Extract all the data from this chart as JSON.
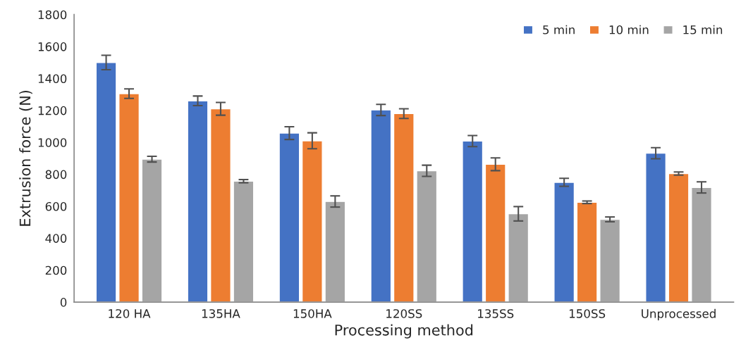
{
  "chart_data": {
    "type": "bar",
    "xlabel": "Processing method",
    "ylabel": "Extrusion force (N)",
    "categories": [
      "120 HA",
      "135HA",
      "150HA",
      "120SS",
      "135SS",
      "150SS",
      "Unprocessed"
    ],
    "series": [
      {
        "name": "5 min",
        "color": "#4472c4",
        "values": [
          1500,
          1260,
          1058,
          1203,
          1008,
          750,
          932
        ],
        "errors": [
          45,
          30,
          40,
          35,
          35,
          25,
          35
        ]
      },
      {
        "name": "10 min",
        "color": "#ed7d31",
        "values": [
          1305,
          1210,
          1010,
          1180,
          863,
          625,
          805
        ],
        "errors": [
          30,
          40,
          50,
          30,
          40,
          8,
          10
        ]
      },
      {
        "name": "15 min",
        "color": "#a5a5a5",
        "values": [
          895,
          757,
          630,
          822,
          553,
          518,
          718
        ],
        "errors": [
          18,
          10,
          35,
          35,
          45,
          15,
          35
        ]
      }
    ],
    "ylim": [
      0,
      1800
    ],
    "yticks": [
      0,
      200,
      400,
      600,
      800,
      1000,
      1200,
      1400,
      1600,
      1800
    ],
    "grid": false,
    "legend": "top right"
  }
}
